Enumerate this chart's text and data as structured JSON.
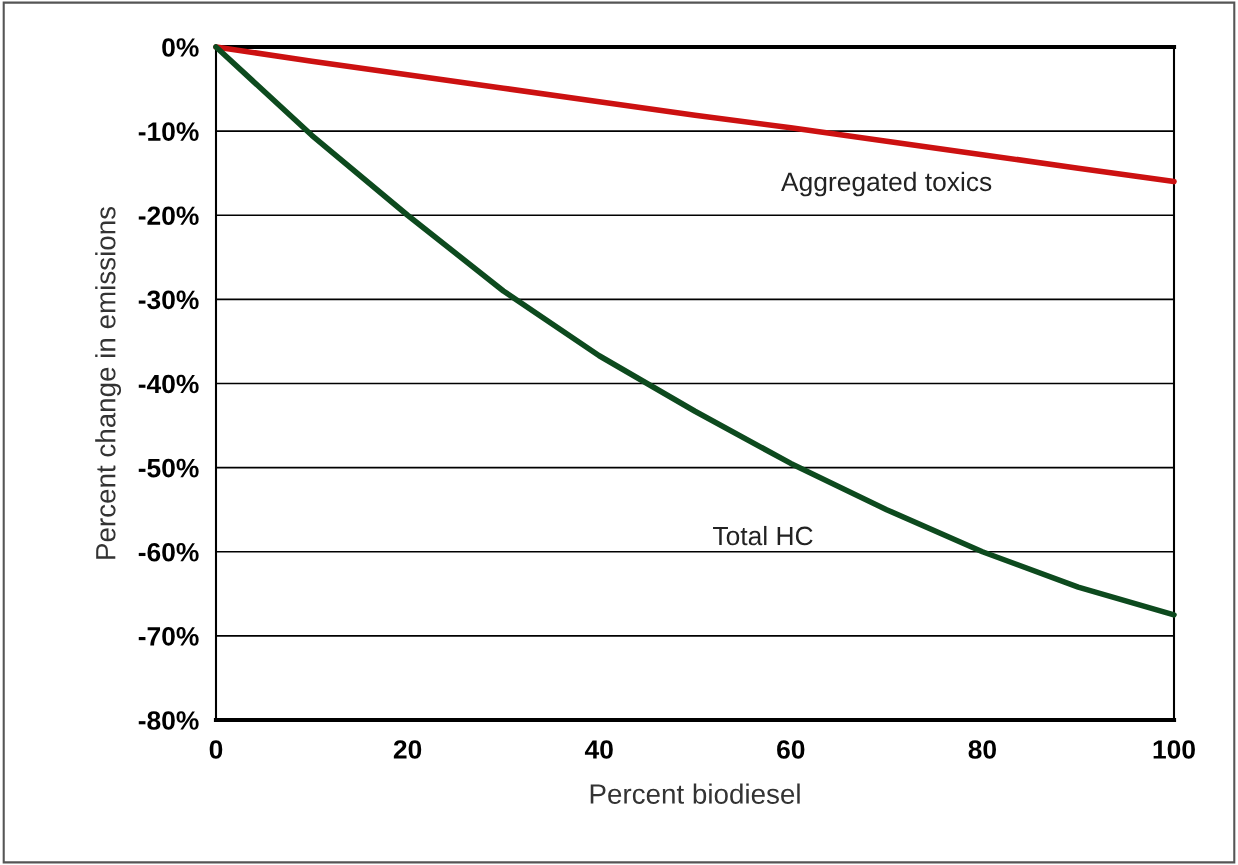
{
  "chart_data": {
    "type": "line",
    "xlabel": "Percent biodiesel",
    "ylabel": "Percent change in emissions",
    "x": [
      0,
      10,
      20,
      30,
      40,
      50,
      60,
      70,
      80,
      90,
      100
    ],
    "series": [
      {
        "name": "Aggregated toxics",
        "color": "#cc1111",
        "values": [
          0,
          -1.7,
          -3.3,
          -4.9,
          -6.5,
          -8.1,
          -9.6,
          -11.2,
          -12.8,
          -14.4,
          -16
        ]
      },
      {
        "name": "Total HC",
        "color": "#0d4a1e",
        "values": [
          0,
          -10.5,
          -20,
          -29,
          -36.7,
          -43.3,
          -49.5,
          -55,
          -60,
          -64.2,
          -67.5
        ]
      }
    ],
    "xlim": [
      0,
      100
    ],
    "xticks": [
      0,
      20,
      40,
      60,
      80,
      100
    ],
    "ylim": [
      -80,
      0
    ],
    "yticks": [
      {
        "value": 0,
        "label": "0%"
      },
      {
        "value": -10,
        "label": "-10%"
      },
      {
        "value": -20,
        "label": "-20%"
      },
      {
        "value": -30,
        "label": "-30%"
      },
      {
        "value": -40,
        "label": "-40%"
      },
      {
        "value": -50,
        "label": "-50%"
      },
      {
        "value": -60,
        "label": "-60%"
      },
      {
        "value": -70,
        "label": "-70%"
      },
      {
        "value": -80,
        "label": "-80%"
      }
    ],
    "grid": "y",
    "legend": false,
    "marker": "none",
    "line_style": "solid"
  }
}
